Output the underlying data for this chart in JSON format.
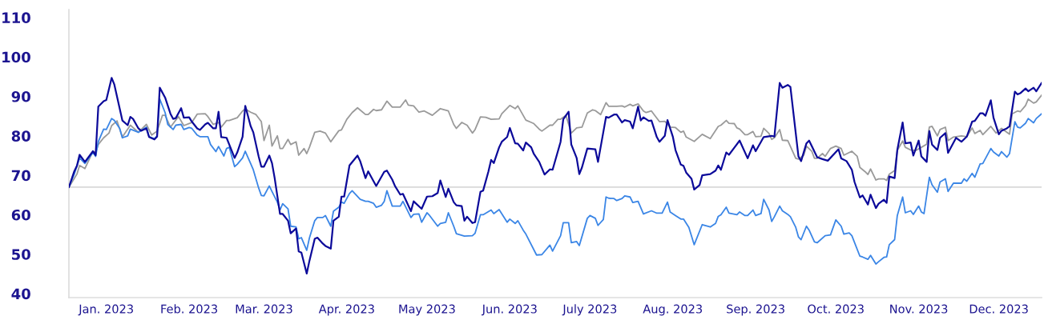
{
  "chart_data": {
    "type": "line",
    "line_style": "solid",
    "xlim": [
      "2023-01-01",
      "2023-12-31"
    ],
    "ylim": [
      39,
      112
    ],
    "yticks": [
      40,
      50,
      60,
      70,
      80,
      90,
      100,
      110
    ],
    "xticks": [
      {
        "value": "2023-01-15",
        "label": "Jan. 2023"
      },
      {
        "value": "2023-02-15",
        "label": "Feb. 2023"
      },
      {
        "value": "2023-03-15",
        "label": "Mar. 2023"
      },
      {
        "value": "2023-04-15",
        "label": "Apr. 2023"
      },
      {
        "value": "2023-05-15",
        "label": "May 2023"
      },
      {
        "value": "2023-06-15",
        "label": "Jun. 2023"
      },
      {
        "value": "2023-07-15",
        "label": "July 2023"
      },
      {
        "value": "2023-08-15",
        "label": "Aug. 2023"
      },
      {
        "value": "2023-09-15",
        "label": "Sep. 2023"
      },
      {
        "value": "2023-10-15",
        "label": "Oct. 2023"
      },
      {
        "value": "2023-11-15",
        "label": "Nov. 2023"
      },
      {
        "value": "2023-12-15",
        "label": "Dec. 2023"
      }
    ],
    "ref_lines": [
      {
        "axis": "y",
        "value": 67,
        "color": "#d9d9d9"
      }
    ],
    "series": [
      {
        "color": "#9a9a9a",
        "x": [
          "2023-01-01",
          "2023-01-04",
          "2023-01-05",
          "2023-01-07",
          "2023-01-10",
          "2023-01-11",
          "2023-01-12",
          "2023-01-14",
          "2023-01-16",
          "2023-01-17",
          "2023-01-19",
          "2023-01-21",
          "2023-01-24",
          "2023-01-27",
          "2023-01-30",
          "2023-02-01",
          "2023-02-03",
          "2023-02-05",
          "2023-02-06",
          "2023-02-08",
          "2023-02-11",
          "2023-02-13",
          "2023-02-16",
          "2023-02-18",
          "2023-02-21",
          "2023-02-22",
          "2023-02-24",
          "2023-02-26",
          "2023-02-27",
          "2023-03-01",
          "2023-03-02",
          "2023-03-05",
          "2023-03-07",
          "2023-03-08",
          "2023-03-10",
          "2023-03-12",
          "2023-03-14",
          "2023-03-15",
          "2023-03-17",
          "2023-03-18",
          "2023-03-20",
          "2023-03-21",
          "2023-03-22",
          "2023-03-24",
          "2023-03-25",
          "2023-03-27",
          "2023-03-28",
          "2023-03-30",
          "2023-03-31",
          "2023-04-01",
          "2023-04-03",
          "2023-04-05",
          "2023-04-07",
          "2023-04-09",
          "2023-04-12",
          "2023-04-13",
          "2023-04-15",
          "2023-04-17",
          "2023-04-19",
          "2023-04-22",
          "2023-04-23",
          "2023-04-25",
          "2023-04-26",
          "2023-04-28",
          "2023-04-30",
          "2023-05-02",
          "2023-05-05",
          "2023-05-07",
          "2023-05-08",
          "2023-05-10",
          "2023-05-12",
          "2023-05-14",
          "2023-05-17",
          "2023-05-20",
          "2023-05-23",
          "2023-05-25",
          "2023-05-26",
          "2023-05-28",
          "2023-05-30",
          "2023-06-01",
          "2023-06-02",
          "2023-06-04",
          "2023-06-06",
          "2023-06-08",
          "2023-06-11",
          "2023-06-12",
          "2023-06-15",
          "2023-06-17",
          "2023-06-18",
          "2023-06-21",
          "2023-06-23",
          "2023-06-24",
          "2023-06-26",
          "2023-06-27",
          "2023-06-30",
          "2023-07-01",
          "2023-07-03",
          "2023-07-04",
          "2023-07-06",
          "2023-07-08",
          "2023-07-10",
          "2023-07-12",
          "2023-07-14",
          "2023-07-16",
          "2023-07-17",
          "2023-07-19",
          "2023-07-21",
          "2023-07-22",
          "2023-07-25",
          "2023-07-27",
          "2023-07-28",
          "2023-07-30",
          "2023-07-31",
          "2023-08-02",
          "2023-08-04",
          "2023-08-05",
          "2023-08-07",
          "2023-08-08",
          "2023-08-10",
          "2023-08-12",
          "2023-08-14",
          "2023-08-16",
          "2023-08-18",
          "2023-08-19",
          "2023-08-20",
          "2023-08-23",
          "2023-08-26",
          "2023-08-29",
          "2023-09-01",
          "2023-09-02",
          "2023-09-04",
          "2023-09-05",
          "2023-09-07",
          "2023-09-08",
          "2023-09-09",
          "2023-09-11",
          "2023-09-12",
          "2023-09-14",
          "2023-09-15",
          "2023-09-17",
          "2023-09-18",
          "2023-09-20",
          "2023-09-21",
          "2023-09-22",
          "2023-09-24",
          "2023-09-25",
          "2023-09-27",
          "2023-09-30",
          "2023-10-01",
          "2023-10-03",
          "2023-10-04",
          "2023-10-06",
          "2023-10-07",
          "2023-10-08",
          "2023-10-10",
          "2023-10-11",
          "2023-10-13",
          "2023-10-15",
          "2023-10-17",
          "2023-10-18",
          "2023-10-21",
          "2023-10-23",
          "2023-10-24",
          "2023-10-26",
          "2023-10-27",
          "2023-10-28",
          "2023-10-30",
          "2023-10-31",
          "2023-11-02",
          "2023-11-03",
          "2023-11-04",
          "2023-11-06",
          "2023-11-07",
          "2023-11-09",
          "2023-11-10",
          "2023-11-12",
          "2023-11-14",
          "2023-11-16",
          "2023-11-18",
          "2023-11-19",
          "2023-11-20",
          "2023-11-22",
          "2023-11-23",
          "2023-11-25",
          "2023-11-26",
          "2023-11-28",
          "2023-12-01",
          "2023-12-03",
          "2023-12-05",
          "2023-12-06",
          "2023-12-08",
          "2023-12-09",
          "2023-12-12",
          "2023-12-14",
          "2023-12-16",
          "2023-12-19",
          "2023-12-20",
          "2023-12-22",
          "2023-12-23",
          "2023-12-25",
          "2023-12-26",
          "2023-12-28",
          "2023-12-29",
          "2023-12-31"
        ],
        "values": [
          67.0,
          70.3,
          72.5,
          71.7,
          76.1,
          75.8,
          77.8,
          79.5,
          80.7,
          82.6,
          83.8,
          79.7,
          82.7,
          80.9,
          82.9,
          80.2,
          81.2,
          85.2,
          85.2,
          82.2,
          84.9,
          82.6,
          83.4,
          85.5,
          85.6,
          84.9,
          82.9,
          83.4,
          82.2,
          83.9,
          83.9,
          84.6,
          86.3,
          86.8,
          86.0,
          85.4,
          83.6,
          78.8,
          82.7,
          77.4,
          80.0,
          76.8,
          76.8,
          79.1,
          77.8,
          78.5,
          75.1,
          76.8,
          75.5,
          77.1,
          80.9,
          81.2,
          80.7,
          78.5,
          81.3,
          81.5,
          84.2,
          85.9,
          87.1,
          85.4,
          85.4,
          86.7,
          86.4,
          86.6,
          88.8,
          87.3,
          87.3,
          89.1,
          87.8,
          87.6,
          86.0,
          86.3,
          85.2,
          86.9,
          86.3,
          82.9,
          81.9,
          83.4,
          82.7,
          80.7,
          81.6,
          84.8,
          84.7,
          84.2,
          84.3,
          85.6,
          87.7,
          86.9,
          87.6,
          84.0,
          83.4,
          83.1,
          81.7,
          81.2,
          82.7,
          82.7,
          84.2,
          84.2,
          85.2,
          80.7,
          82.0,
          82.2,
          85.8,
          86.6,
          86.4,
          85.4,
          88.4,
          87.5,
          87.5,
          87.6,
          87.3,
          88.0,
          87.6,
          88.1,
          86.3,
          85.9,
          86.3,
          85.4,
          83.6,
          83.7,
          82.2,
          82.1,
          80.9,
          81.2,
          79.7,
          78.6,
          80.4,
          79.3,
          82.4,
          82.7,
          83.9,
          83.2,
          83.1,
          82.0,
          81.7,
          80.3,
          80.3,
          81.1,
          79.8,
          79.9,
          81.9,
          80.6,
          79.1,
          79.5,
          81.6,
          78.9,
          78.8,
          74.3,
          74.1,
          75.1,
          77.4,
          76.1,
          74.3,
          74.3,
          75.5,
          74.8,
          76.8,
          77.4,
          76.8,
          75.1,
          76.1,
          74.8,
          72.0,
          70.9,
          70.2,
          71.6,
          68.8,
          69.1,
          69.1,
          68.7,
          70.3,
          71.2,
          76.3,
          78.7,
          77.1,
          76.4,
          76.3,
          77.1,
          77.9,
          82.2,
          82.4,
          80.0,
          81.6,
          82.2,
          78.8,
          79.7,
          80.0,
          79.8,
          82.0,
          80.6,
          81.4,
          80.3,
          82.4,
          80.7,
          81.9,
          80.4,
          85.6,
          86.3,
          86.1,
          87.7,
          89.3,
          88.3,
          88.6,
          90.3
        ]
      },
      {
        "color": "#3b86e6",
        "x": [
          "2023-01-01",
          "2023-01-03",
          "2023-01-05",
          "2023-01-07",
          "2023-01-10",
          "2023-01-11",
          "2023-01-12",
          "2023-01-14",
          "2023-01-15",
          "2023-01-17",
          "2023-01-18",
          "2023-01-20",
          "2023-01-21",
          "2023-01-23",
          "2023-01-24",
          "2023-01-27",
          "2023-01-30",
          "2023-01-31",
          "2023-02-02",
          "2023-02-03",
          "2023-02-04",
          "2023-02-06",
          "2023-02-07",
          "2023-02-09",
          "2023-02-10",
          "2023-02-12",
          "2023-02-13",
          "2023-02-15",
          "2023-02-16",
          "2023-02-18",
          "2023-02-19",
          "2023-02-22",
          "2023-02-23",
          "2023-02-25",
          "2023-02-26",
          "2023-02-28",
          "2023-03-01",
          "2023-03-02",
          "2023-03-04",
          "2023-03-05",
          "2023-03-07",
          "2023-03-08",
          "2023-03-10",
          "2023-03-11",
          "2023-03-13",
          "2023-03-14",
          "2023-03-15",
          "2023-03-17",
          "2023-03-18",
          "2023-03-20",
          "2023-03-21",
          "2023-03-22",
          "2023-03-24",
          "2023-03-25",
          "2023-03-27",
          "2023-03-28",
          "2023-03-29",
          "2023-03-31",
          "2023-04-01",
          "2023-04-03",
          "2023-04-04",
          "2023-04-06",
          "2023-04-07",
          "2023-04-09",
          "2023-04-10",
          "2023-04-12",
          "2023-04-13",
          "2023-04-14",
          "2023-04-16",
          "2023-04-17",
          "2023-04-20",
          "2023-04-22",
          "2023-04-23",
          "2023-04-25",
          "2023-04-26",
          "2023-04-28",
          "2023-04-29",
          "2023-04-30",
          "2023-05-02",
          "2023-05-05",
          "2023-05-06",
          "2023-05-09",
          "2023-05-10",
          "2023-05-12",
          "2023-05-13",
          "2023-05-15",
          "2023-05-16",
          "2023-05-19",
          "2023-05-20",
          "2023-05-22",
          "2023-05-23",
          "2023-05-25",
          "2023-05-26",
          "2023-05-29",
          "2023-06-01",
          "2023-06-02",
          "2023-06-04",
          "2023-06-05",
          "2023-06-08",
          "2023-06-09",
          "2023-06-11",
          "2023-06-14",
          "2023-06-15",
          "2023-06-17",
          "2023-06-18",
          "2023-06-20",
          "2023-06-21",
          "2023-06-25",
          "2023-06-27",
          "2023-06-30",
          "2023-07-01",
          "2023-07-04",
          "2023-07-05",
          "2023-07-07",
          "2023-07-08",
          "2023-07-10",
          "2023-07-11",
          "2023-07-14",
          "2023-07-15",
          "2023-07-17",
          "2023-07-18",
          "2023-07-20",
          "2023-07-21",
          "2023-07-22",
          "2023-07-24",
          "2023-07-25",
          "2023-07-27",
          "2023-07-28",
          "2023-07-30",
          "2023-07-31",
          "2023-08-02",
          "2023-08-04",
          "2023-08-07",
          "2023-08-09",
          "2023-08-11",
          "2023-08-13",
          "2023-08-14",
          "2023-08-16",
          "2023-08-18",
          "2023-08-19",
          "2023-08-21",
          "2023-08-23",
          "2023-08-26",
          "2023-08-29",
          "2023-08-31",
          "2023-09-01",
          "2023-09-02",
          "2023-09-04",
          "2023-09-05",
          "2023-09-08",
          "2023-09-09",
          "2023-09-11",
          "2023-09-12",
          "2023-09-14",
          "2023-09-15",
          "2023-09-17",
          "2023-09-18",
          "2023-09-20",
          "2023-09-21",
          "2023-09-22",
          "2023-09-24",
          "2023-09-25",
          "2023-09-27",
          "2023-09-28",
          "2023-09-30",
          "2023-10-01",
          "2023-10-02",
          "2023-10-04",
          "2023-10-05",
          "2023-10-07",
          "2023-10-08",
          "2023-10-11",
          "2023-10-13",
          "2023-10-15",
          "2023-10-17",
          "2023-10-18",
          "2023-10-20",
          "2023-10-21",
          "2023-10-24",
          "2023-10-25",
          "2023-10-27",
          "2023-10-28",
          "2023-10-30",
          "2023-10-31",
          "2023-11-02",
          "2023-11-03",
          "2023-11-04",
          "2023-11-06",
          "2023-11-07",
          "2023-11-09",
          "2023-11-10",
          "2023-11-12",
          "2023-11-13",
          "2023-11-15",
          "2023-11-16",
          "2023-11-17",
          "2023-11-19",
          "2023-11-20",
          "2023-11-22",
          "2023-11-23",
          "2023-11-25",
          "2023-11-26",
          "2023-11-28",
          "2023-12-01",
          "2023-12-02",
          "2023-12-03",
          "2023-12-05",
          "2023-12-06",
          "2023-12-08",
          "2023-12-09",
          "2023-12-12",
          "2023-12-13",
          "2023-12-15",
          "2023-12-16",
          "2023-12-18",
          "2023-12-19",
          "2023-12-21",
          "2023-12-22",
          "2023-12-23",
          "2023-12-25",
          "2023-12-26",
          "2023-12-28",
          "2023-12-29",
          "2023-12-31"
        ],
        "values": [
          67.0,
          70.3,
          74.4,
          73.0,
          75.8,
          74.8,
          78.5,
          81.7,
          81.6,
          84.4,
          83.9,
          81.9,
          79.5,
          80.0,
          81.7,
          80.9,
          82.2,
          79.8,
          79.3,
          80.0,
          89.3,
          85.9,
          82.9,
          81.6,
          82.7,
          82.9,
          81.6,
          82.1,
          81.9,
          80.2,
          79.8,
          79.8,
          77.8,
          76.0,
          77.3,
          74.9,
          76.8,
          77.1,
          72.2,
          72.8,
          74.4,
          76.1,
          73.0,
          71.4,
          66.8,
          64.9,
          64.8,
          67.3,
          65.9,
          63.2,
          61.2,
          62.8,
          61.5,
          57.1,
          56.9,
          53.9,
          54.2,
          51.0,
          54.1,
          58.5,
          59.3,
          59.3,
          59.8,
          57.1,
          60.9,
          61.9,
          63.2,
          62.9,
          65.4,
          66.1,
          63.9,
          63.4,
          63.4,
          62.9,
          61.9,
          62.4,
          63.4,
          66.1,
          62.2,
          62.2,
          63.4,
          59.3,
          60.1,
          60.2,
          58.1,
          60.5,
          59.8,
          57.1,
          57.8,
          58.1,
          60.5,
          57.1,
          55.2,
          54.6,
          54.7,
          55.3,
          60.0,
          60.0,
          61.2,
          60.3,
          61.3,
          58.1,
          58.9,
          57.8,
          58.5,
          56.1,
          55.1,
          49.8,
          49.9,
          52.3,
          50.8,
          54.7,
          58.0,
          58.0,
          52.9,
          53.2,
          52.2,
          59.1,
          59.8,
          59.1,
          57.3,
          58.8,
          64.5,
          64.2,
          64.1,
          63.6,
          64.1,
          64.8,
          64.5,
          63.1,
          63.4,
          60.2,
          61.0,
          60.4,
          60.4,
          63.2,
          60.7,
          59.8,
          58.9,
          58.9,
          56.8,
          52.4,
          57.5,
          56.9,
          57.8,
          59.6,
          60.0,
          61.9,
          60.4,
          60.0,
          60.7,
          59.8,
          59.8,
          61.2,
          59.8,
          60.3,
          63.9,
          61.2,
          58.3,
          59.5,
          62.2,
          61.0,
          60.1,
          59.5,
          56.8,
          54.4,
          53.7,
          57.1,
          56.1,
          53.1,
          52.9,
          54.7,
          54.9,
          58.7,
          57.1,
          55.1,
          55.4,
          54.7,
          49.5,
          49.3,
          48.7,
          49.7,
          47.5,
          48.1,
          49.2,
          49.3,
          52.4,
          53.7,
          59.8,
          64.5,
          60.5,
          61.0,
          60.1,
          62.2,
          60.7,
          60.3,
          69.5,
          67.6,
          65.7,
          68.3,
          69.1,
          65.9,
          68.0,
          68.0,
          69.1,
          68.5,
          70.5,
          69.5,
          72.9,
          73.0,
          76.8,
          75.9,
          74.9,
          76.0,
          74.6,
          75.5,
          83.6,
          82.2,
          82.0,
          83.2,
          84.4,
          83.3,
          84.4,
          85.6
        ]
      },
      {
        "color": "#0c0a9a",
        "x": [
          "2023-01-01",
          "2023-01-03",
          "2023-01-04",
          "2023-01-05",
          "2023-01-07",
          "2023-01-10",
          "2023-01-11",
          "2023-01-12",
          "2023-01-14",
          "2023-01-15",
          "2023-01-17",
          "2023-01-18",
          "2023-01-21",
          "2023-01-23",
          "2023-01-24",
          "2023-01-25",
          "2023-01-27",
          "2023-01-28",
          "2023-01-30",
          "2023-01-31",
          "2023-02-02",
          "2023-02-03",
          "2023-02-04",
          "2023-02-06",
          "2023-02-08",
          "2023-02-09",
          "2023-02-10",
          "2023-02-12",
          "2023-02-13",
          "2023-02-15",
          "2023-02-16",
          "2023-02-18",
          "2023-02-19",
          "2023-02-21",
          "2023-02-22",
          "2023-02-24",
          "2023-02-25",
          "2023-02-26",
          "2023-02-27",
          "2023-03-01",
          "2023-03-02",
          "2023-03-04",
          "2023-03-05",
          "2023-03-07",
          "2023-03-08",
          "2023-03-10",
          "2023-03-11",
          "2023-03-13",
          "2023-03-14",
          "2023-03-15",
          "2023-03-17",
          "2023-03-18",
          "2023-03-19",
          "2023-03-21",
          "2023-03-22",
          "2023-03-24",
          "2023-03-25",
          "2023-03-27",
          "2023-03-28",
          "2023-03-29",
          "2023-03-31",
          "2023-04-01",
          "2023-04-03",
          "2023-04-04",
          "2023-04-06",
          "2023-04-07",
          "2023-04-09",
          "2023-04-10",
          "2023-04-12",
          "2023-04-13",
          "2023-04-14",
          "2023-04-16",
          "2023-04-19",
          "2023-04-20",
          "2023-04-22",
          "2023-04-23",
          "2023-04-25",
          "2023-04-26",
          "2023-04-29",
          "2023-04-30",
          "2023-05-02",
          "2023-05-03",
          "2023-05-05",
          "2023-05-06",
          "2023-05-09",
          "2023-05-10",
          "2023-05-13",
          "2023-05-15",
          "2023-05-17",
          "2023-05-19",
          "2023-05-20",
          "2023-05-22",
          "2023-05-23",
          "2023-05-25",
          "2023-05-26",
          "2023-05-28",
          "2023-05-29",
          "2023-05-30",
          "2023-06-01",
          "2023-06-02",
          "2023-06-04",
          "2023-06-05",
          "2023-06-07",
          "2023-06-08",
          "2023-06-09",
          "2023-06-11",
          "2023-06-12",
          "2023-06-14",
          "2023-06-15",
          "2023-06-17",
          "2023-06-18",
          "2023-06-20",
          "2023-06-21",
          "2023-06-23",
          "2023-06-24",
          "2023-06-26",
          "2023-06-28",
          "2023-06-30",
          "2023-07-01",
          "2023-07-04",
          "2023-07-05",
          "2023-07-07",
          "2023-07-08",
          "2023-07-10",
          "2023-07-11",
          "2023-07-12",
          "2023-07-14",
          "2023-07-17",
          "2023-07-18",
          "2023-07-21",
          "2023-07-22",
          "2023-07-24",
          "2023-07-25",
          "2023-07-27",
          "2023-07-28",
          "2023-07-30",
          "2023-07-31",
          "2023-08-02",
          "2023-08-03",
          "2023-08-04",
          "2023-08-06",
          "2023-08-07",
          "2023-08-09",
          "2023-08-10",
          "2023-08-12",
          "2023-08-13",
          "2023-08-15",
          "2023-08-16",
          "2023-08-18",
          "2023-08-19",
          "2023-08-20",
          "2023-08-22",
          "2023-08-23",
          "2023-08-25",
          "2023-08-26",
          "2023-08-29",
          "2023-08-31",
          "2023-09-01",
          "2023-09-02",
          "2023-09-04",
          "2023-09-05",
          "2023-09-07",
          "2023-09-09",
          "2023-09-12",
          "2023-09-14",
          "2023-09-15",
          "2023-09-17",
          "2023-09-18",
          "2023-09-21",
          "2023-09-22",
          "2023-09-24",
          "2023-09-25",
          "2023-09-27",
          "2023-09-28",
          "2023-10-01",
          "2023-10-02",
          "2023-10-04",
          "2023-10-05",
          "2023-10-08",
          "2023-10-10",
          "2023-10-12",
          "2023-10-16",
          "2023-10-17",
          "2023-10-19",
          "2023-10-21",
          "2023-10-22",
          "2023-10-24",
          "2023-10-25",
          "2023-10-27",
          "2023-10-28",
          "2023-10-30",
          "2023-10-31",
          "2023-11-02",
          "2023-11-03",
          "2023-11-04",
          "2023-11-06",
          "2023-11-07",
          "2023-11-09",
          "2023-11-10",
          "2023-11-12",
          "2023-11-13",
          "2023-11-15",
          "2023-11-16",
          "2023-11-18",
          "2023-11-19",
          "2023-11-20",
          "2023-11-22",
          "2023-11-23",
          "2023-11-25",
          "2023-11-26",
          "2023-11-29",
          "2023-12-01",
          "2023-12-03",
          "2023-12-05",
          "2023-12-06",
          "2023-12-08",
          "2023-12-09",
          "2023-12-10",
          "2023-12-12",
          "2023-12-13",
          "2023-12-15",
          "2023-12-16",
          "2023-12-18",
          "2023-12-19",
          "2023-12-21",
          "2023-12-22",
          "2023-12-23",
          "2023-12-25",
          "2023-12-26",
          "2023-12-28",
          "2023-12-29",
          "2023-12-31"
        ],
        "values": [
          67.0,
          71.0,
          72.4,
          75.2,
          73.4,
          76.1,
          75.1,
          87.4,
          88.8,
          89.1,
          94.7,
          93.0,
          83.9,
          82.7,
          84.8,
          84.3,
          81.9,
          81.3,
          81.9,
          79.7,
          79.1,
          79.8,
          92.2,
          89.7,
          85.6,
          84.3,
          84.5,
          87.0,
          84.6,
          84.7,
          83.6,
          81.9,
          81.5,
          82.9,
          83.3,
          81.9,
          81.9,
          86.1,
          79.7,
          79.5,
          77.8,
          74.4,
          75.8,
          79.8,
          87.6,
          82.5,
          80.9,
          74.8,
          72.2,
          72.2,
          75.0,
          73.1,
          69.3,
          60.2,
          60.2,
          58.5,
          55.3,
          56.5,
          50.7,
          50.4,
          45.1,
          48.3,
          53.9,
          54.2,
          52.7,
          52.1,
          51.4,
          58.5,
          59.5,
          64.6,
          64.6,
          72.5,
          75.0,
          73.6,
          69.3,
          71.0,
          68.5,
          67.3,
          70.9,
          71.2,
          68.9,
          67.3,
          65.1,
          65.3,
          60.9,
          63.4,
          61.5,
          64.6,
          64.7,
          65.5,
          68.7,
          64.5,
          66.6,
          63.2,
          62.4,
          62.2,
          58.5,
          59.5,
          57.9,
          58.1,
          65.8,
          66.1,
          71.0,
          73.9,
          73.1,
          77.1,
          78.5,
          79.7,
          82.0,
          78.1,
          78.0,
          76.3,
          78.3,
          77.1,
          75.4,
          73.4,
          70.2,
          71.5,
          71.4,
          78.5,
          84.2,
          86.1,
          77.8,
          74.4,
          70.3,
          72.0,
          76.8,
          76.6,
          73.4,
          84.8,
          84.6,
          85.4,
          85.4,
          83.4,
          84.0,
          83.6,
          81.9,
          87.4,
          83.9,
          84.7,
          83.8,
          83.9,
          79.7,
          78.5,
          80.0,
          84.0,
          79.8,
          76.4,
          72.7,
          72.4,
          70.7,
          69.1,
          66.4,
          67.5,
          70.0,
          70.3,
          71.2,
          72.5,
          71.4,
          75.8,
          75.2,
          77.0,
          78.8,
          74.3,
          77.6,
          76.1,
          78.5,
          79.7,
          80.0,
          79.8,
          93.4,
          92.2,
          92.9,
          92.4,
          74.8,
          73.6,
          78.1,
          78.8,
          74.6,
          74.1,
          73.7,
          76.6,
          74.3,
          73.6,
          71.4,
          68.3,
          64.4,
          64.9,
          62.6,
          65.1,
          61.7,
          62.8,
          63.8,
          63.0,
          69.7,
          69.3,
          76.4,
          83.4,
          78.1,
          78.3,
          75.0,
          78.8,
          74.8,
          73.4,
          81.2,
          77.8,
          76.4,
          79.5,
          80.7,
          75.7,
          79.5,
          78.5,
          79.8,
          83.6,
          83.8,
          85.7,
          85.7,
          85.1,
          89.0,
          84.6,
          80.4,
          81.3,
          81.9,
          82.4,
          91.2,
          90.5,
          90.8,
          92.0,
          91.3,
          92.2,
          91.3,
          93.4
        ]
      }
    ]
  }
}
